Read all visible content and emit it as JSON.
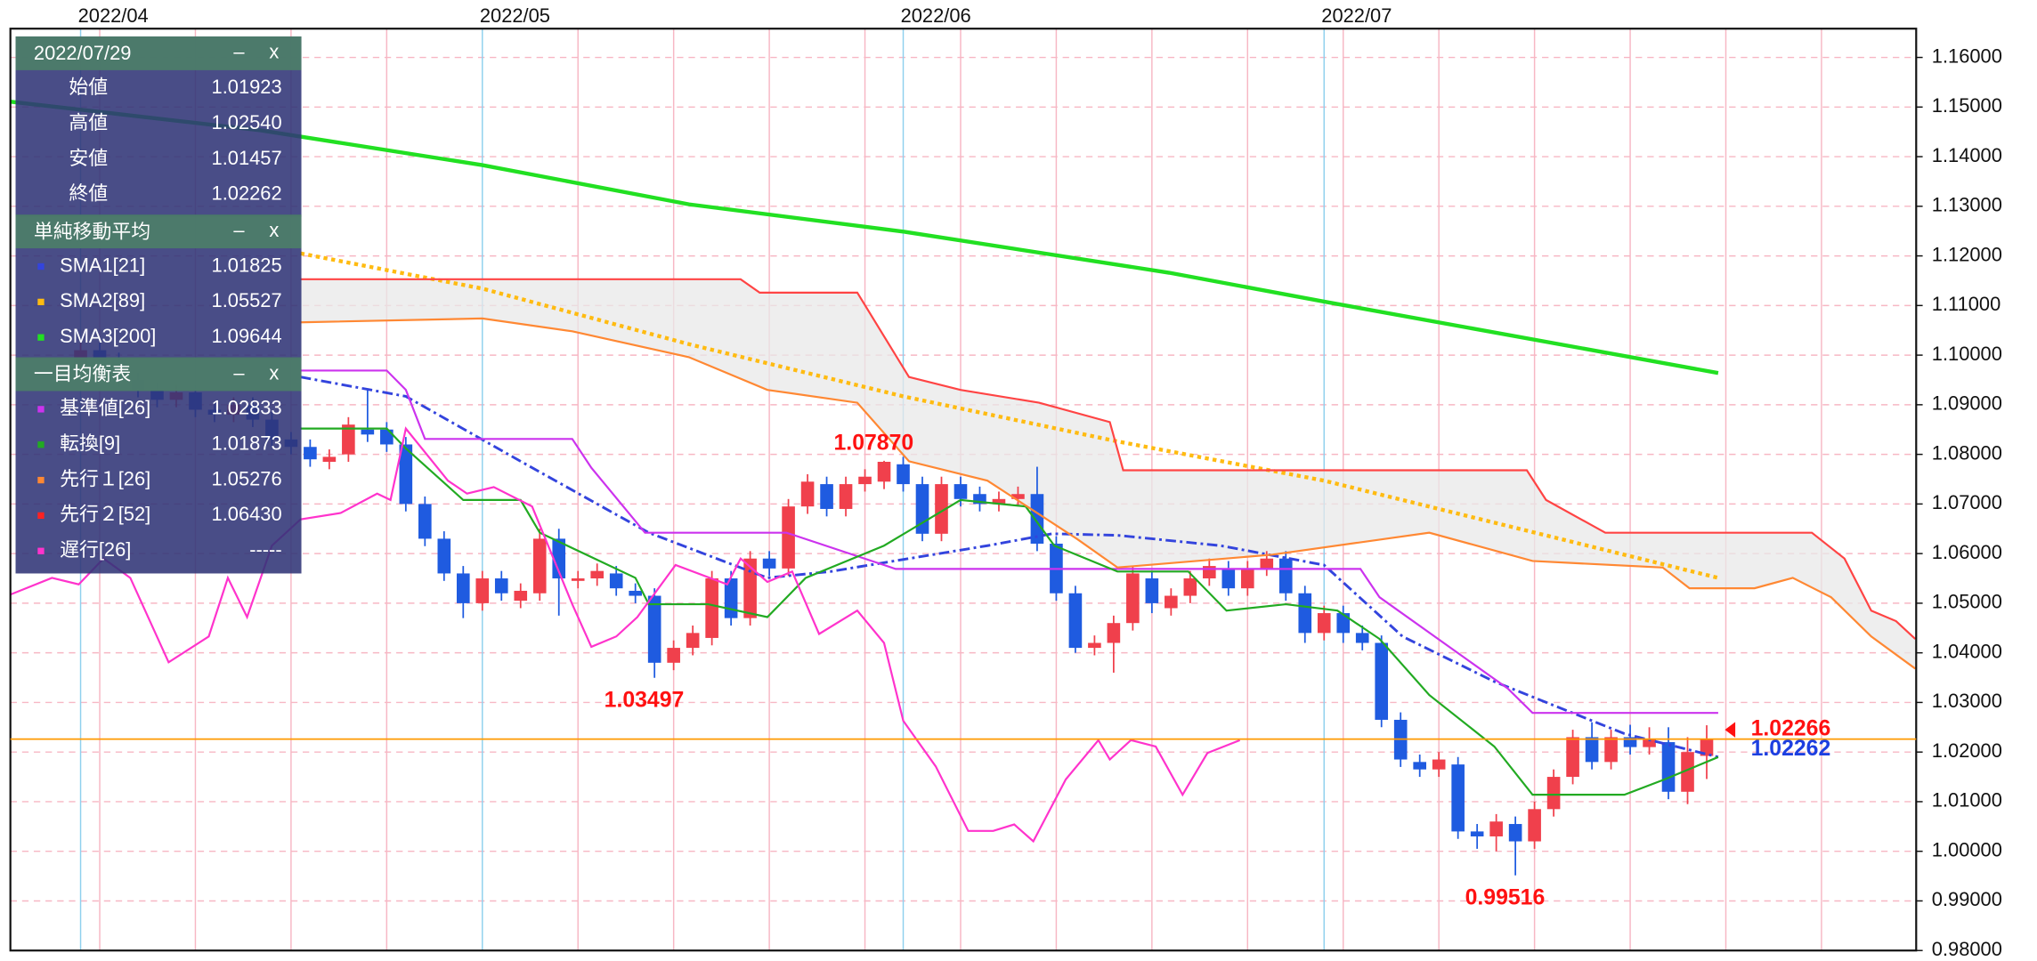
{
  "chart_data": {
    "type": "candlestick",
    "xlim": [
      -3.67,
      95.95
    ],
    "ylim": [
      0.98,
      1.1658
    ],
    "xticks": [
      {
        "value": 0,
        "label": "2022/04"
      },
      {
        "value": 21,
        "label": "2022/05"
      },
      {
        "value": 43,
        "label": "2022/06"
      },
      {
        "value": 65,
        "label": "2022/07"
      }
    ],
    "xgrid": [
      1,
      6,
      11,
      16,
      26,
      31,
      36,
      41,
      46,
      51,
      56,
      61,
      66,
      71,
      76,
      81,
      86,
      91
    ],
    "yticks": [
      {
        "value": 0.98,
        "label": "0.98000"
      },
      {
        "value": 0.99,
        "label": "0.99000"
      },
      {
        "value": 1.0,
        "label": "1.00000"
      },
      {
        "value": 1.01,
        "label": "1.01000"
      },
      {
        "value": 1.02,
        "label": "1.02000"
      },
      {
        "value": 1.03,
        "label": "1.03000"
      },
      {
        "value": 1.04,
        "label": "1.04000"
      },
      {
        "value": 1.05,
        "label": "1.05000"
      },
      {
        "value": 1.06,
        "label": "1.06000"
      },
      {
        "value": 1.07,
        "label": "1.07000"
      },
      {
        "value": 1.08,
        "label": "1.08000"
      },
      {
        "value": 1.09,
        "label": "1.09000"
      },
      {
        "value": 1.1,
        "label": "1.10000"
      },
      {
        "value": 1.11,
        "label": "1.11000"
      },
      {
        "value": 1.12,
        "label": "1.12000"
      },
      {
        "value": 1.13,
        "label": "1.13000"
      },
      {
        "value": 1.14,
        "label": "1.14000"
      },
      {
        "value": 1.15,
        "label": "1.15000"
      },
      {
        "value": 1.16,
        "label": "1.16000"
      }
    ],
    "grid": true,
    "up_color": "#f0404c",
    "down_color": "#1f5be0",
    "candles": {
      "x": [
        0,
        1,
        2,
        3,
        4,
        5,
        6,
        7,
        8,
        9,
        10,
        11,
        12,
        13,
        14,
        15,
        16,
        17,
        18,
        19,
        20,
        21,
        22,
        23,
        24,
        25,
        26,
        27,
        28,
        29,
        30,
        31,
        32,
        33,
        34,
        35,
        36,
        37,
        38,
        39,
        40,
        41,
        42,
        43,
        44,
        45,
        46,
        47,
        48,
        49,
        50,
        51,
        52,
        53,
        54,
        55,
        56,
        57,
        58,
        59,
        60,
        61,
        62,
        63,
        64,
        65,
        66,
        67,
        68,
        69,
        70,
        71,
        72,
        73,
        74,
        75,
        76,
        77,
        78,
        79,
        80,
        81,
        82,
        83,
        84,
        85
      ],
      "open": [
        1.098,
        1.101,
        1.099,
        1.095,
        1.093,
        1.091,
        1.0925,
        1.089,
        1.088,
        1.09,
        1.087,
        1.083,
        1.0815,
        1.0785,
        1.08,
        1.085,
        1.085,
        1.082,
        1.07,
        1.063,
        1.056,
        1.05,
        1.055,
        1.0505,
        1.052,
        1.063,
        1.0545,
        1.055,
        1.056,
        1.0525,
        1.0515,
        1.038,
        1.041,
        1.043,
        1.055,
        1.047,
        1.059,
        1.057,
        1.0695,
        1.074,
        1.069,
        1.074,
        1.0745,
        1.078,
        1.074,
        1.064,
        1.074,
        1.072,
        1.07,
        1.071,
        1.072,
        1.062,
        1.052,
        1.041,
        1.042,
        1.046,
        1.055,
        1.049,
        1.0515,
        1.055,
        1.057,
        1.053,
        1.057,
        1.059,
        1.052,
        1.044,
        1.048,
        1.044,
        1.042,
        1.0265,
        1.018,
        1.0165,
        1.0175,
        1.004,
        1.003,
        1.0055,
        1.002,
        1.0085,
        1.015,
        1.023,
        1.018,
        1.023,
        1.021,
        1.022,
        1.012,
        1.01923
      ],
      "high": [
        1.1025,
        1.1025,
        1.1005,
        1.0965,
        1.0945,
        1.094,
        1.094,
        1.0905,
        1.0915,
        1.0915,
        1.0885,
        1.0845,
        1.083,
        1.081,
        1.0875,
        1.093,
        1.0865,
        1.0835,
        1.0715,
        1.0645,
        1.0575,
        1.0565,
        1.0565,
        1.054,
        1.065,
        1.065,
        1.0565,
        1.058,
        1.0575,
        1.054,
        1.053,
        1.0425,
        1.0455,
        1.0565,
        1.0565,
        1.0605,
        1.0605,
        1.071,
        1.076,
        1.0755,
        1.0755,
        1.077,
        1.0787,
        1.0795,
        1.0755,
        1.0755,
        1.0755,
        1.0735,
        1.0725,
        1.0735,
        1.0775,
        1.0635,
        1.0535,
        1.0435,
        1.0475,
        1.0575,
        1.0565,
        1.053,
        1.0565,
        1.059,
        1.0585,
        1.0585,
        1.0605,
        1.0605,
        1.0535,
        1.0495,
        1.0495,
        1.0455,
        1.0435,
        1.028,
        1.0195,
        1.02,
        1.019,
        1.0055,
        1.0075,
        1.007,
        1.01,
        1.0165,
        1.0245,
        1.026,
        1.0245,
        1.0255,
        1.025,
        1.025,
        1.023,
        1.0254
      ],
      "low": [
        1.0965,
        1.0975,
        1.0935,
        1.0915,
        1.0895,
        1.0895,
        1.0875,
        1.0865,
        1.0865,
        1.0855,
        1.0815,
        1.08,
        1.0775,
        1.077,
        1.0785,
        1.0825,
        1.0805,
        1.0685,
        1.0615,
        1.0545,
        1.047,
        1.0485,
        1.0505,
        1.049,
        1.0505,
        1.0475,
        1.053,
        1.0535,
        1.0515,
        1.05,
        1.03497,
        1.0365,
        1.0395,
        1.0415,
        1.0455,
        1.0455,
        1.0555,
        1.0555,
        1.068,
        1.0675,
        1.0675,
        1.0725,
        1.073,
        1.0725,
        1.0625,
        1.0625,
        1.0695,
        1.0685,
        1.0685,
        1.0695,
        1.0605,
        1.0505,
        1.04,
        1.0395,
        1.036,
        1.0445,
        1.048,
        1.0475,
        1.05,
        1.0535,
        1.0515,
        1.0515,
        1.0555,
        1.0505,
        1.042,
        1.0425,
        1.042,
        1.0405,
        1.025,
        1.017,
        1.015,
        1.015,
        1.0025,
        1.0005,
        1.0,
        0.99516,
        1.0005,
        1.007,
        1.0135,
        1.0165,
        1.0165,
        1.0195,
        1.0195,
        1.0105,
        1.0095,
        1.01457
      ],
      "close": [
        1.101,
        1.099,
        1.095,
        1.093,
        1.091,
        1.0925,
        1.089,
        1.088,
        1.09,
        1.087,
        1.083,
        1.0815,
        1.079,
        1.0795,
        1.086,
        1.084,
        1.082,
        1.07,
        1.063,
        1.056,
        1.05,
        1.055,
        1.052,
        1.0525,
        1.063,
        1.055,
        1.055,
        1.0565,
        1.053,
        1.0515,
        1.038,
        1.041,
        1.044,
        1.055,
        1.047,
        1.059,
        1.057,
        1.0695,
        1.0745,
        1.069,
        1.074,
        1.0755,
        1.0785,
        1.074,
        1.064,
        1.074,
        1.071,
        1.07,
        1.071,
        1.072,
        1.062,
        1.052,
        1.041,
        1.042,
        1.046,
        1.056,
        1.05,
        1.0515,
        1.055,
        1.0575,
        1.053,
        1.057,
        1.059,
        1.052,
        1.044,
        1.048,
        1.044,
        1.042,
        1.0265,
        1.0185,
        1.0165,
        1.0185,
        1.004,
        1.003,
        1.006,
        1.002,
        1.0085,
        1.015,
        1.023,
        1.018,
        1.023,
        1.021,
        1.0225,
        1.012,
        1.02,
        1.02262
      ]
    },
    "series": [
      {
        "color": "#22e022",
        "style": "solid",
        "width": 3,
        "x": [
          -3.7,
          9.4,
          21,
          31.8,
          43,
          56.9,
          65,
          85.6
        ],
        "values": [
          1.1511,
          1.1453,
          1.1383,
          1.1304,
          1.1249,
          1.1166,
          1.1108,
          1.0964
        ]
      },
      {
        "color": "#ffbb11",
        "style": "dotted",
        "width": 3,
        "x": [
          11.5,
          21,
          31.8,
          43,
          54.2,
          65,
          85.6
        ],
        "values": [
          1.1205,
          1.1134,
          1.1022,
          1.0917,
          1.0826,
          1.0747,
          1.0551
        ]
      },
      {
        "color": "#3344dd",
        "style": "dashdot",
        "width": 2,
        "x": [
          11.5,
          17,
          23,
          29.7,
          35.9,
          39.2,
          43.3,
          47.4,
          50.8,
          54.2,
          59.6,
          65,
          69.1,
          73.9,
          80.7,
          85.6
        ],
        "values": [
          1.0956,
          1.0917,
          1.0786,
          1.0642,
          1.0551,
          1.0564,
          1.059,
          1.0616,
          1.064,
          1.0637,
          1.0616,
          1.0577,
          1.0433,
          1.0342,
          1.0237,
          1.019
        ]
      },
      {
        "color": "#cc33ee",
        "style": "solid",
        "width": 1.5,
        "x": [
          11.5,
          16,
          17,
          18,
          25.7,
          26.7,
          29.5,
          36.9,
          42,
          42.6,
          66.9,
          67.9,
          74.6,
          75.9,
          85.6
        ],
        "values": [
          1.0969,
          1.0969,
          1.093,
          1.0831,
          1.0831,
          1.0773,
          1.0642,
          1.0642,
          1.0577,
          1.0569,
          1.0569,
          1.0512,
          1.0328,
          1.0279,
          1.0279
        ]
      },
      {
        "color": "#22aa22",
        "style": "solid",
        "width": 1.5,
        "x": [
          11.5,
          16,
          17,
          20,
          23,
          24,
          29,
          29.7,
          32.8,
          35.9,
          37.9,
          42,
          46,
          49.4,
          50.9,
          54.2,
          57.9,
          59.9,
          63,
          65.7,
          67.9,
          70.5,
          73.9,
          75.9,
          80.7,
          82.8,
          85.6
        ],
        "values": [
          1.0852,
          1.0852,
          1.0812,
          1.0708,
          1.0708,
          1.0642,
          1.0551,
          1.0498,
          1.0498,
          1.0472,
          1.0551,
          1.0616,
          1.0708,
          1.0695,
          1.0616,
          1.0564,
          1.0564,
          1.0485,
          1.0498,
          1.0485,
          1.0428,
          1.0315,
          1.0211,
          1.0114,
          1.0114,
          1.0145,
          1.019
        ]
      },
      {
        "color": "#ff8833",
        "style": "solid",
        "width": 1.5,
        "x": [
          11.5,
          21,
          25.7,
          31.8,
          35.9,
          40.6,
          43.3,
          47.4,
          52.1,
          54.2,
          62.3,
          70.5,
          75.9,
          82.7,
          84.1,
          87.5,
          89.5,
          91.5,
          93.6,
          95.9
        ],
        "values": [
          1.1066,
          1.1074,
          1.1048,
          1.0996,
          1.093,
          1.0904,
          1.0786,
          1.0747,
          1.0629,
          1.0572,
          1.0598,
          1.0642,
          1.0585,
          1.0572,
          1.053,
          1.053,
          1.0551,
          1.0512,
          1.0433,
          1.0368
        ]
      },
      {
        "color": "#ff4444",
        "style": "solid",
        "width": 1.5,
        "x": [
          11.5,
          34.5,
          35.5,
          40.6,
          43.3,
          46,
          50.1,
          53.8,
          54.5,
          75.6,
          76.6,
          79.7,
          90.5,
          92.2,
          93.6,
          94.9,
          95.9
        ],
        "values": [
          1.1153,
          1.1153,
          1.1126,
          1.1126,
          1.0956,
          1.093,
          1.0904,
          1.0865,
          1.0768,
          1.0768,
          1.0708,
          1.0642,
          1.0642,
          1.059,
          1.0485,
          1.0464,
          1.0428
        ]
      },
      {
        "color": "#ff33cc",
        "style": "solid",
        "width": 1.5,
        "x": [
          -3.7,
          -1.5,
          -0.1,
          1.2,
          2.6,
          4.6,
          6.7,
          7.7,
          8.7,
          10,
          11.5,
          13.6,
          15.5,
          16.2,
          17,
          19.2,
          20.2,
          21.6,
          23.6,
          25.7,
          26.7,
          28,
          29.1,
          31.1,
          33.8,
          34.5,
          35.9,
          37.2,
          38.6,
          40.6,
          42,
          43,
          44.7,
          46.4,
          47.7,
          48.8,
          49.8,
          51.5,
          53.2,
          53.8,
          54.9,
          56.2,
          57.6,
          58.9,
          60.6
        ],
        "values": [
          1.0517,
          1.0551,
          1.0538,
          1.059,
          1.0551,
          1.0381,
          1.0433,
          1.0551,
          1.0472,
          1.0616,
          1.0669,
          1.0682,
          1.0721,
          1.0708,
          1.0852,
          1.0747,
          1.0721,
          1.0734,
          1.0695,
          1.0498,
          1.0412,
          1.0433,
          1.0472,
          1.0577,
          1.0538,
          1.059,
          1.0543,
          1.0564,
          1.0438,
          1.0485,
          1.042,
          1.0263,
          1.0171,
          1.0041,
          1.0041,
          1.0054,
          1.002,
          1.0145,
          1.0224,
          1.0185,
          1.0224,
          1.0211,
          1.0114,
          1.0198,
          1.0224
        ]
      }
    ],
    "cloud": {
      "color": "#e8e8e8"
    },
    "price_labels": [
      {
        "value": 1.02266,
        "label": "1.02266",
        "color": "#ff1111"
      },
      {
        "value": 1.02262,
        "label": "1.02262",
        "color": "#1d3fe0"
      }
    ],
    "price_line_color": "#ff9900",
    "annotations": [
      {
        "x": 42,
        "value": 1.0787,
        "label": "1.07870",
        "side": "above"
      },
      {
        "x": 30,
        "value": 1.03497,
        "label": "1.03497",
        "side": "below"
      },
      {
        "x": 75,
        "value": 0.99516,
        "label": "0.99516",
        "side": "below"
      }
    ]
  },
  "panel": {
    "sections": [
      {
        "title": "2022/07/29",
        "buttons": [
          "–",
          "x"
        ],
        "rows": [
          {
            "label": "始値",
            "value": "1.01923"
          },
          {
            "label": "高値",
            "value": "1.02540"
          },
          {
            "label": "安値",
            "value": "1.01457"
          },
          {
            "label": "終値",
            "value": "1.02262"
          }
        ]
      },
      {
        "title": "単純移動平均",
        "buttons": [
          "–",
          "x"
        ],
        "rows": [
          {
            "label": "SMA1[21]",
            "value": "1.01825",
            "color": "#3344dd"
          },
          {
            "label": "SMA2[89]",
            "value": "1.05527",
            "color": "#ffbb11"
          },
          {
            "label": "SMA3[200]",
            "value": "1.09644",
            "color": "#22e022"
          }
        ]
      },
      {
        "title": "一目均衡表",
        "buttons": [
          "–",
          "x"
        ],
        "rows": [
          {
            "label": "基準値[26]",
            "value": "1.02833",
            "color": "#cc33ee"
          },
          {
            "label": "転換[9]",
            "value": "1.01873",
            "color": "#22aa22"
          },
          {
            "label": "先行１[26]",
            "value": "1.05276",
            "color": "#ff8833"
          },
          {
            "label": "先行２[52]",
            "value": "1.06430",
            "color": "#ff2222"
          },
          {
            "label": "遅行[26]",
            "value": "-----",
            "color": "#ff33cc"
          }
        ]
      }
    ]
  }
}
